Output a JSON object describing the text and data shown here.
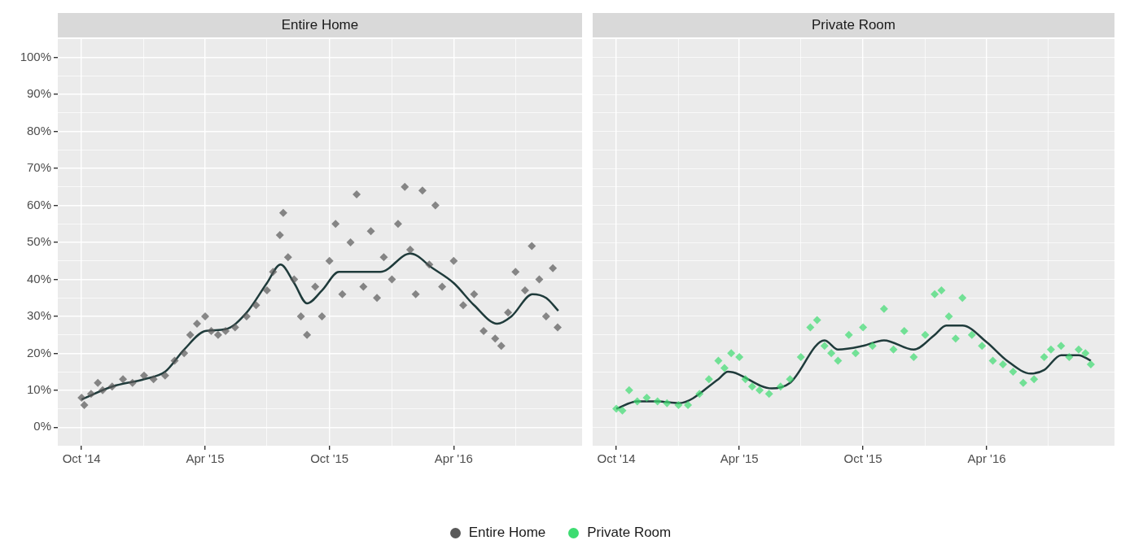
{
  "chart_data": [
    {
      "type": "scatter",
      "title": "Entire Home",
      "legend": "bottom",
      "grid": true,
      "xlim": [
        "2014-08-27",
        "2016-10-07"
      ],
      "xticks": [
        {
          "value": "2014-10-01",
          "label": "Oct '14"
        },
        {
          "value": "2015-01-01",
          "label": null
        },
        {
          "value": "2015-04-01",
          "label": "Apr '15"
        },
        {
          "value": "2015-07-01",
          "label": null
        },
        {
          "value": "2015-10-01",
          "label": "Oct '15"
        },
        {
          "value": "2016-01-01",
          "label": null
        },
        {
          "value": "2016-04-01",
          "label": "Apr '16"
        },
        {
          "value": "2016-07-01",
          "label": null
        }
      ],
      "ylim": [
        -5,
        105
      ],
      "yticks": [
        {
          "value": 0,
          "label": "0%"
        },
        {
          "value": 5,
          "label": null
        },
        {
          "value": 10,
          "label": "10%"
        },
        {
          "value": 15,
          "label": null
        },
        {
          "value": 20,
          "label": "20%"
        },
        {
          "value": 25,
          "label": null
        },
        {
          "value": 30,
          "label": "30%"
        },
        {
          "value": 35,
          "label": null
        },
        {
          "value": 40,
          "label": "40%"
        },
        {
          "value": 45,
          "label": null
        },
        {
          "value": 50,
          "label": "50%"
        },
        {
          "value": 55,
          "label": null
        },
        {
          "value": 60,
          "label": "60%"
        },
        {
          "value": 65,
          "label": null
        },
        {
          "value": 70,
          "label": "70%"
        },
        {
          "value": 75,
          "label": null
        },
        {
          "value": 80,
          "label": "80%"
        },
        {
          "value": 85,
          "label": null
        },
        {
          "value": 90,
          "label": "90%"
        },
        {
          "value": 95,
          "label": null
        },
        {
          "value": 100,
          "label": "100%"
        }
      ],
      "series": [
        {
          "name": "Entire Home",
          "marker": "diamond",
          "color": "#595959",
          "x": [
            "2014-10-01",
            "2014-10-05",
            "2014-10-15",
            "2014-10-25",
            "2014-11-01",
            "2014-11-15",
            "2014-12-01",
            "2014-12-15",
            "2015-01-01",
            "2015-01-15",
            "2015-02-01",
            "2015-02-15",
            "2015-03-01",
            "2015-03-10",
            "2015-03-20",
            "2015-04-01",
            "2015-04-10",
            "2015-04-20",
            "2015-05-01",
            "2015-05-15",
            "2015-06-01",
            "2015-06-15",
            "2015-07-01",
            "2015-07-10",
            "2015-07-20",
            "2015-07-25",
            "2015-08-01",
            "2015-08-10",
            "2015-08-20",
            "2015-08-29",
            "2015-09-10",
            "2015-09-20",
            "2015-10-01",
            "2015-10-10",
            "2015-10-20",
            "2015-11-01",
            "2015-11-10",
            "2015-11-20",
            "2015-12-01",
            "2015-12-10",
            "2015-12-20",
            "2016-01-01",
            "2016-01-10",
            "2016-01-20",
            "2016-01-28",
            "2016-02-05",
            "2016-02-15",
            "2016-02-25",
            "2016-03-05",
            "2016-03-15",
            "2016-04-01",
            "2016-04-15",
            "2016-05-01",
            "2016-05-15",
            "2016-06-01",
            "2016-06-10",
            "2016-06-20",
            "2016-07-01",
            "2016-07-15",
            "2016-07-25",
            "2016-08-05",
            "2016-08-15",
            "2016-08-25",
            "2016-09-01"
          ],
          "values": [
            8,
            6,
            9,
            12,
            10,
            11,
            13,
            12,
            14,
            13,
            14,
            18,
            20,
            25,
            28,
            30,
            26,
            25,
            26,
            27,
            30,
            33,
            37,
            42,
            52,
            58,
            46,
            40,
            30,
            25,
            38,
            30,
            45,
            55,
            36,
            50,
            63,
            38,
            53,
            35,
            46,
            40,
            55,
            65,
            48,
            36,
            64,
            44,
            60,
            38,
            45,
            33,
            36,
            26,
            24,
            22,
            31,
            42,
            37,
            49,
            40,
            30,
            43,
            27
          ]
        },
        {
          "type": "line",
          "color": "#1f3b3b",
          "x": [
            "2014-10-01",
            "2014-11-15",
            "2015-01-01",
            "2015-02-01",
            "2015-03-01",
            "2015-04-01",
            "2015-05-01",
            "2015-06-01",
            "2015-07-01",
            "2015-07-21",
            "2015-08-10",
            "2015-08-29",
            "2015-09-20",
            "2015-10-15",
            "2015-12-15",
            "2016-01-28",
            "2016-03-01",
            "2016-04-01",
            "2016-05-01",
            "2016-06-04",
            "2016-06-25",
            "2016-07-26",
            "2016-08-15",
            "2016-09-02"
          ],
          "values": [
            7.5,
            11,
            13,
            15,
            21,
            26,
            26.5,
            31,
            39,
            44,
            39,
            33.5,
            37,
            42,
            42,
            47,
            43,
            39,
            33,
            28,
            30,
            36,
            35,
            31.5
          ]
        }
      ]
    },
    {
      "type": "scatter",
      "title": "Private Room",
      "legend": "bottom",
      "grid": true,
      "tick_labels": "x",
      "xlim": [
        "2014-08-27",
        "2016-10-07"
      ],
      "xticks": [
        {
          "value": "2014-10-01",
          "label": "Oct '14"
        },
        {
          "value": "2015-01-01",
          "label": null
        },
        {
          "value": "2015-04-01",
          "label": "Apr '15"
        },
        {
          "value": "2015-07-01",
          "label": null
        },
        {
          "value": "2015-10-01",
          "label": "Oct '15"
        },
        {
          "value": "2016-01-01",
          "label": null
        },
        {
          "value": "2016-04-01",
          "label": "Apr '16"
        },
        {
          "value": "2016-07-01",
          "label": null
        }
      ],
      "ylim": [
        -5,
        105
      ],
      "yticks": [
        {
          "value": 0,
          "label": null
        },
        {
          "value": 5,
          "label": null
        },
        {
          "value": 10,
          "label": null
        },
        {
          "value": 15,
          "label": null
        },
        {
          "value": 20,
          "label": null
        },
        {
          "value": 25,
          "label": null
        },
        {
          "value": 30,
          "label": null
        },
        {
          "value": 35,
          "label": null
        },
        {
          "value": 40,
          "label": null
        },
        {
          "value": 45,
          "label": null
        },
        {
          "value": 50,
          "label": null
        },
        {
          "value": 55,
          "label": null
        },
        {
          "value": 60,
          "label": null
        },
        {
          "value": 65,
          "label": null
        },
        {
          "value": 70,
          "label": null
        },
        {
          "value": 75,
          "label": null
        },
        {
          "value": 80,
          "label": null
        },
        {
          "value": 85,
          "label": null
        },
        {
          "value": 90,
          "label": null
        },
        {
          "value": 95,
          "label": null
        },
        {
          "value": 100,
          "label": null
        }
      ],
      "series": [
        {
          "name": "Private Room",
          "marker": "diamond",
          "color": "#3ddc71",
          "x": [
            "2014-10-01",
            "2014-10-10",
            "2014-10-20",
            "2014-11-01",
            "2014-11-15",
            "2014-12-01",
            "2014-12-15",
            "2015-01-01",
            "2015-01-15",
            "2015-02-01",
            "2015-02-15",
            "2015-03-01",
            "2015-03-10",
            "2015-03-20",
            "2015-04-01",
            "2015-04-10",
            "2015-04-20",
            "2015-05-01",
            "2015-05-15",
            "2015-06-01",
            "2015-06-15",
            "2015-07-01",
            "2015-07-15",
            "2015-07-25",
            "2015-08-05",
            "2015-08-15",
            "2015-08-25",
            "2015-09-10",
            "2015-09-20",
            "2015-10-01",
            "2015-10-15",
            "2015-11-01",
            "2015-11-15",
            "2015-12-01",
            "2015-12-15",
            "2016-01-01",
            "2016-01-15",
            "2016-01-25",
            "2016-02-05",
            "2016-02-15",
            "2016-02-25",
            "2016-03-10",
            "2016-03-25",
            "2016-04-10",
            "2016-04-25",
            "2016-05-10",
            "2016-05-25",
            "2016-06-10",
            "2016-06-25",
            "2016-07-05",
            "2016-07-20",
            "2016-08-01",
            "2016-08-15",
            "2016-08-25",
            "2016-09-02"
          ],
          "values": [
            5,
            4.5,
            10,
            7,
            8,
            7,
            6.5,
            6,
            6,
            9,
            13,
            18,
            16,
            20,
            19,
            13,
            11,
            10,
            9,
            11,
            13,
            19,
            27,
            29,
            22,
            20,
            18,
            25,
            20,
            27,
            22,
            32,
            21,
            26,
            19,
            25,
            36,
            37,
            30,
            24,
            35,
            25,
            22,
            18,
            17,
            15,
            12,
            13,
            19,
            21,
            22,
            19,
            21,
            20,
            17
          ]
        },
        {
          "type": "line",
          "color": "#1f3b3b",
          "x": [
            "2014-10-01",
            "2014-11-01",
            "2014-12-01",
            "2015-01-01",
            "2015-03-01",
            "2015-03-15",
            "2015-05-19",
            "2015-06-15",
            "2015-08-05",
            "2015-08-25",
            "2015-10-01",
            "2015-11-01",
            "2015-12-15",
            "2016-01-15",
            "2016-02-01",
            "2016-02-25",
            "2016-04-01",
            "2016-05-01",
            "2016-06-05",
            "2016-06-25",
            "2016-07-20",
            "2016-08-15",
            "2016-09-02"
          ],
          "values": [
            5,
            7,
            7,
            6.5,
            13,
            15,
            10.5,
            12,
            23.5,
            21,
            22,
            23.5,
            21,
            25,
            27.5,
            27.5,
            23,
            18,
            14.5,
            15.5,
            19.5,
            19.5,
            18
          ]
        }
      ]
    }
  ]
}
